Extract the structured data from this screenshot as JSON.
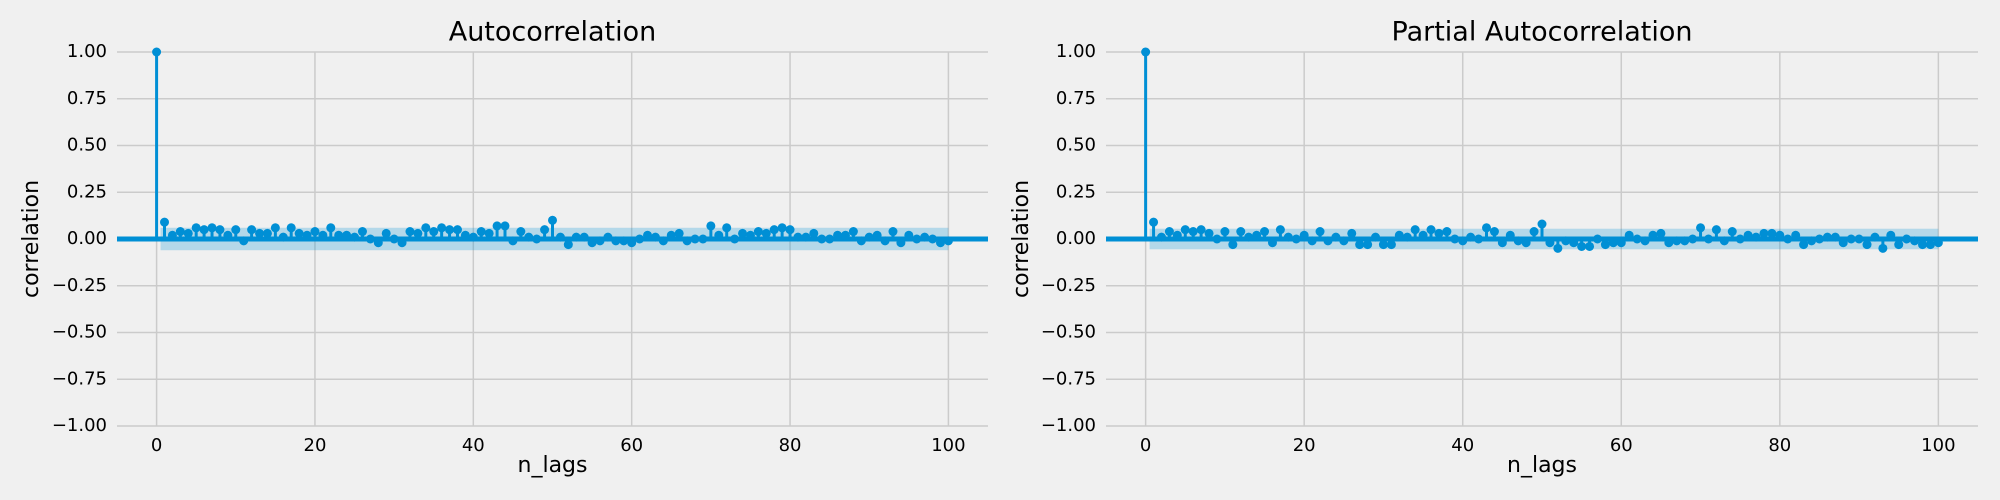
{
  "chart_data": [
    {
      "type": "stem",
      "title": "Autocorrelation",
      "xlabel": "n_lags",
      "ylabel": "correlation",
      "color": "#008fd5",
      "grid": true,
      "xlim": [
        -5,
        105
      ],
      "ylim": [
        -1,
        1
      ],
      "xticks": [
        0,
        20,
        40,
        60,
        80,
        100
      ],
      "yticks": [
        {
          "value": -1,
          "label": "−1.00"
        },
        {
          "value": -0.75,
          "label": "−0.75"
        },
        {
          "value": -0.5,
          "label": "−0.50"
        },
        {
          "value": -0.25,
          "label": "−0.25"
        },
        {
          "value": 0,
          "label": "0.00"
        },
        {
          "value": 0.25,
          "label": "0.25"
        },
        {
          "value": 0.5,
          "label": "0.50"
        },
        {
          "value": 0.75,
          "label": "0.75"
        },
        {
          "value": 1,
          "label": "1.00"
        }
      ],
      "confidence_band": [
        -0.06,
        0.06
      ],
      "x": [
        0,
        1,
        2,
        3,
        4,
        5,
        6,
        7,
        8,
        9,
        10,
        11,
        12,
        13,
        14,
        15,
        16,
        17,
        18,
        19,
        20,
        21,
        22,
        23,
        24,
        25,
        26,
        27,
        28,
        29,
        30,
        31,
        32,
        33,
        34,
        35,
        36,
        37,
        38,
        39,
        40,
        41,
        42,
        43,
        44,
        45,
        46,
        47,
        48,
        49,
        50,
        51,
        52,
        53,
        54,
        55,
        56,
        57,
        58,
        59,
        60,
        61,
        62,
        63,
        64,
        65,
        66,
        67,
        68,
        69,
        70,
        71,
        72,
        73,
        74,
        75,
        76,
        77,
        78,
        79,
        80,
        81,
        82,
        83,
        84,
        85,
        86,
        87,
        88,
        89,
        90,
        91,
        92,
        93,
        94,
        95,
        96,
        97,
        98,
        99,
        100
      ],
      "values": [
        1,
        0.09,
        0.02,
        0.04,
        0.03,
        0.06,
        0.05,
        0.06,
        0.05,
        0.02,
        0.05,
        -0.01,
        0.05,
        0.03,
        0.03,
        0.06,
        0.01,
        0.06,
        0.03,
        0.02,
        0.04,
        0.02,
        0.06,
        0.02,
        0.02,
        0.01,
        0.04,
        0.0,
        -0.02,
        0.03,
        0.0,
        -0.02,
        0.04,
        0.03,
        0.06,
        0.04,
        0.06,
        0.05,
        0.05,
        0.02,
        0.01,
        0.04,
        0.03,
        0.07,
        0.07,
        -0.01,
        0.04,
        0.01,
        0.0,
        0.05,
        0.1,
        0.01,
        -0.03,
        0.01,
        0.01,
        -0.02,
        -0.01,
        0.01,
        -0.01,
        -0.01,
        -0.02,
        0.0,
        0.02,
        0.01,
        -0.01,
        0.02,
        0.03,
        -0.01,
        0.0,
        0.0,
        0.07,
        0.02,
        0.06,
        0.0,
        0.03,
        0.02,
        0.04,
        0.03,
        0.05,
        0.06,
        0.05,
        0.01,
        0.01,
        0.03,
        0.0,
        0.0,
        0.02,
        0.02,
        0.04,
        -0.01,
        0.01,
        0.02,
        -0.01,
        0.04,
        -0.02,
        0.02,
        0.0,
        0.01,
        0.0,
        -0.02,
        -0.01
      ]
    },
    {
      "type": "stem",
      "title": "Partial Autocorrelation",
      "xlabel": "n_lags",
      "ylabel": "correlation",
      "color": "#008fd5",
      "grid": true,
      "xlim": [
        -5,
        105
      ],
      "ylim": [
        -1,
        1
      ],
      "xticks": [
        0,
        20,
        40,
        60,
        80,
        100
      ],
      "yticks": [
        {
          "value": -1,
          "label": "−1.00"
        },
        {
          "value": -0.75,
          "label": "−0.75"
        },
        {
          "value": -0.5,
          "label": "−0.50"
        },
        {
          "value": -0.25,
          "label": "−0.25"
        },
        {
          "value": 0,
          "label": "0.00"
        },
        {
          "value": 0.25,
          "label": "0.25"
        },
        {
          "value": 0.5,
          "label": "0.50"
        },
        {
          "value": 0.75,
          "label": "0.75"
        },
        {
          "value": 1,
          "label": "1.00"
        }
      ],
      "confidence_band": [
        -0.055,
        0.055
      ],
      "x": [
        0,
        1,
        2,
        3,
        4,
        5,
        6,
        7,
        8,
        9,
        10,
        11,
        12,
        13,
        14,
        15,
        16,
        17,
        18,
        19,
        20,
        21,
        22,
        23,
        24,
        25,
        26,
        27,
        28,
        29,
        30,
        31,
        32,
        33,
        34,
        35,
        36,
        37,
        38,
        39,
        40,
        41,
        42,
        43,
        44,
        45,
        46,
        47,
        48,
        49,
        50,
        51,
        52,
        53,
        54,
        55,
        56,
        57,
        58,
        59,
        60,
        61,
        62,
        63,
        64,
        65,
        66,
        67,
        68,
        69,
        70,
        71,
        72,
        73,
        74,
        75,
        76,
        77,
        78,
        79,
        80,
        81,
        82,
        83,
        84,
        85,
        86,
        87,
        88,
        89,
        90,
        91,
        92,
        93,
        94,
        95,
        96,
        97,
        98,
        99,
        100
      ],
      "values": [
        1,
        0.09,
        0.01,
        0.04,
        0.02,
        0.05,
        0.04,
        0.05,
        0.03,
        0.0,
        0.04,
        -0.03,
        0.04,
        0.01,
        0.02,
        0.04,
        -0.02,
        0.05,
        0.01,
        0.0,
        0.02,
        -0.01,
        0.04,
        -0.01,
        0.01,
        -0.01,
        0.03,
        -0.03,
        -0.03,
        0.01,
        -0.03,
        -0.03,
        0.02,
        0.01,
        0.05,
        0.02,
        0.05,
        0.03,
        0.04,
        0.0,
        -0.01,
        0.01,
        0.0,
        0.06,
        0.04,
        -0.02,
        0.02,
        -0.01,
        -0.02,
        0.04,
        0.08,
        -0.02,
        -0.05,
        -0.01,
        -0.02,
        -0.04,
        -0.04,
        0.0,
        -0.03,
        -0.02,
        -0.02,
        0.02,
        0.0,
        -0.01,
        0.02,
        0.03,
        -0.02,
        -0.01,
        -0.01,
        0.0,
        0.06,
        0.0,
        0.05,
        -0.01,
        0.04,
        0.0,
        0.02,
        0.01,
        0.03,
        0.03,
        0.02,
        0.0,
        0.02,
        -0.03,
        -0.01,
        0.0,
        0.01,
        0.01,
        -0.02,
        0.0,
        0.0,
        -0.03,
        0.01,
        -0.05,
        0.02,
        -0.03,
        0.0,
        -0.01,
        -0.03,
        -0.03,
        -0.02
      ]
    }
  ]
}
